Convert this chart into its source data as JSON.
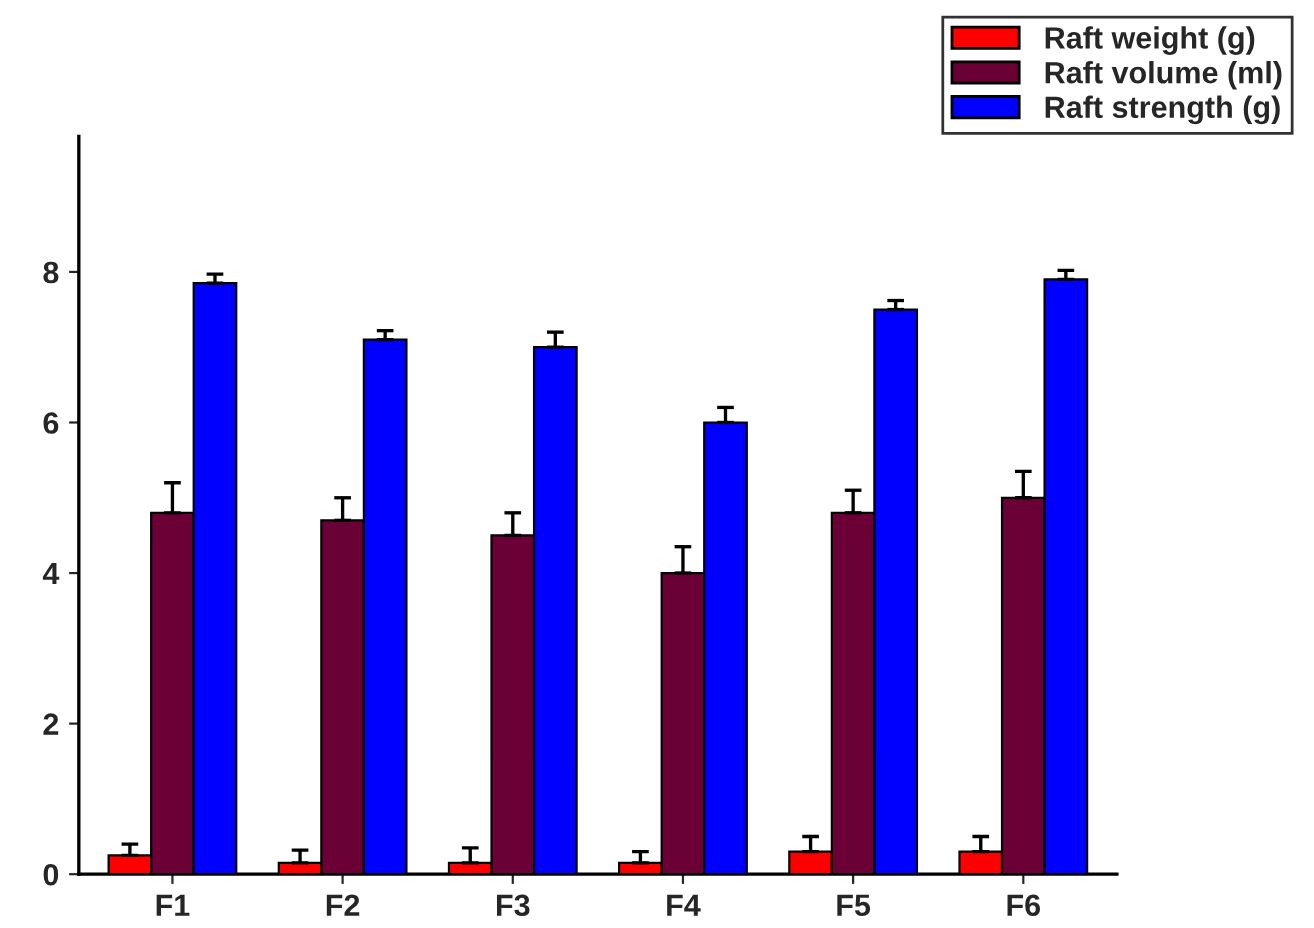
{
  "chart_data": {
    "type": "bar",
    "categories": [
      "F1",
      "F2",
      "F3",
      "F4",
      "F5",
      "F6"
    ],
    "series": [
      {
        "name": "Raft weight (g)",
        "color": "#ff0000",
        "values": [
          0.25,
          0.15,
          0.15,
          0.15,
          0.3,
          0.3
        ],
        "errors": [
          [
            0.25,
            0.4
          ],
          [
            0.15,
            0.32
          ],
          [
            0.15,
            0.35
          ],
          [
            0.15,
            0.3
          ],
          [
            0.3,
            0.5
          ],
          [
            0.3,
            0.5
          ]
        ]
      },
      {
        "name": "Raft volume (ml)",
        "color": "#6a0036",
        "values": [
          4.8,
          4.7,
          4.5,
          4.0,
          4.8,
          5.0
        ],
        "errors": [
          [
            4.8,
            5.2
          ],
          [
            4.7,
            5.0
          ],
          [
            4.5,
            4.8
          ],
          [
            4.0,
            4.35
          ],
          [
            4.8,
            5.1
          ],
          [
            5.0,
            5.35
          ]
        ]
      },
      {
        "name": "Raft strength (g)",
        "color": "#0000ff",
        "values": [
          7.85,
          7.1,
          7.0,
          6.0,
          7.5,
          7.9
        ],
        "errors": [
          [
            7.85,
            7.97
          ],
          [
            7.1,
            7.22
          ],
          [
            7.0,
            7.2
          ],
          [
            6.0,
            6.2
          ],
          [
            7.5,
            7.62
          ],
          [
            7.9,
            8.02
          ]
        ]
      }
    ],
    "ylim": [
      0,
      9.8
    ],
    "yticks": [
      0,
      2,
      4,
      6,
      8
    ],
    "grid": false,
    "legend": "top right"
  }
}
